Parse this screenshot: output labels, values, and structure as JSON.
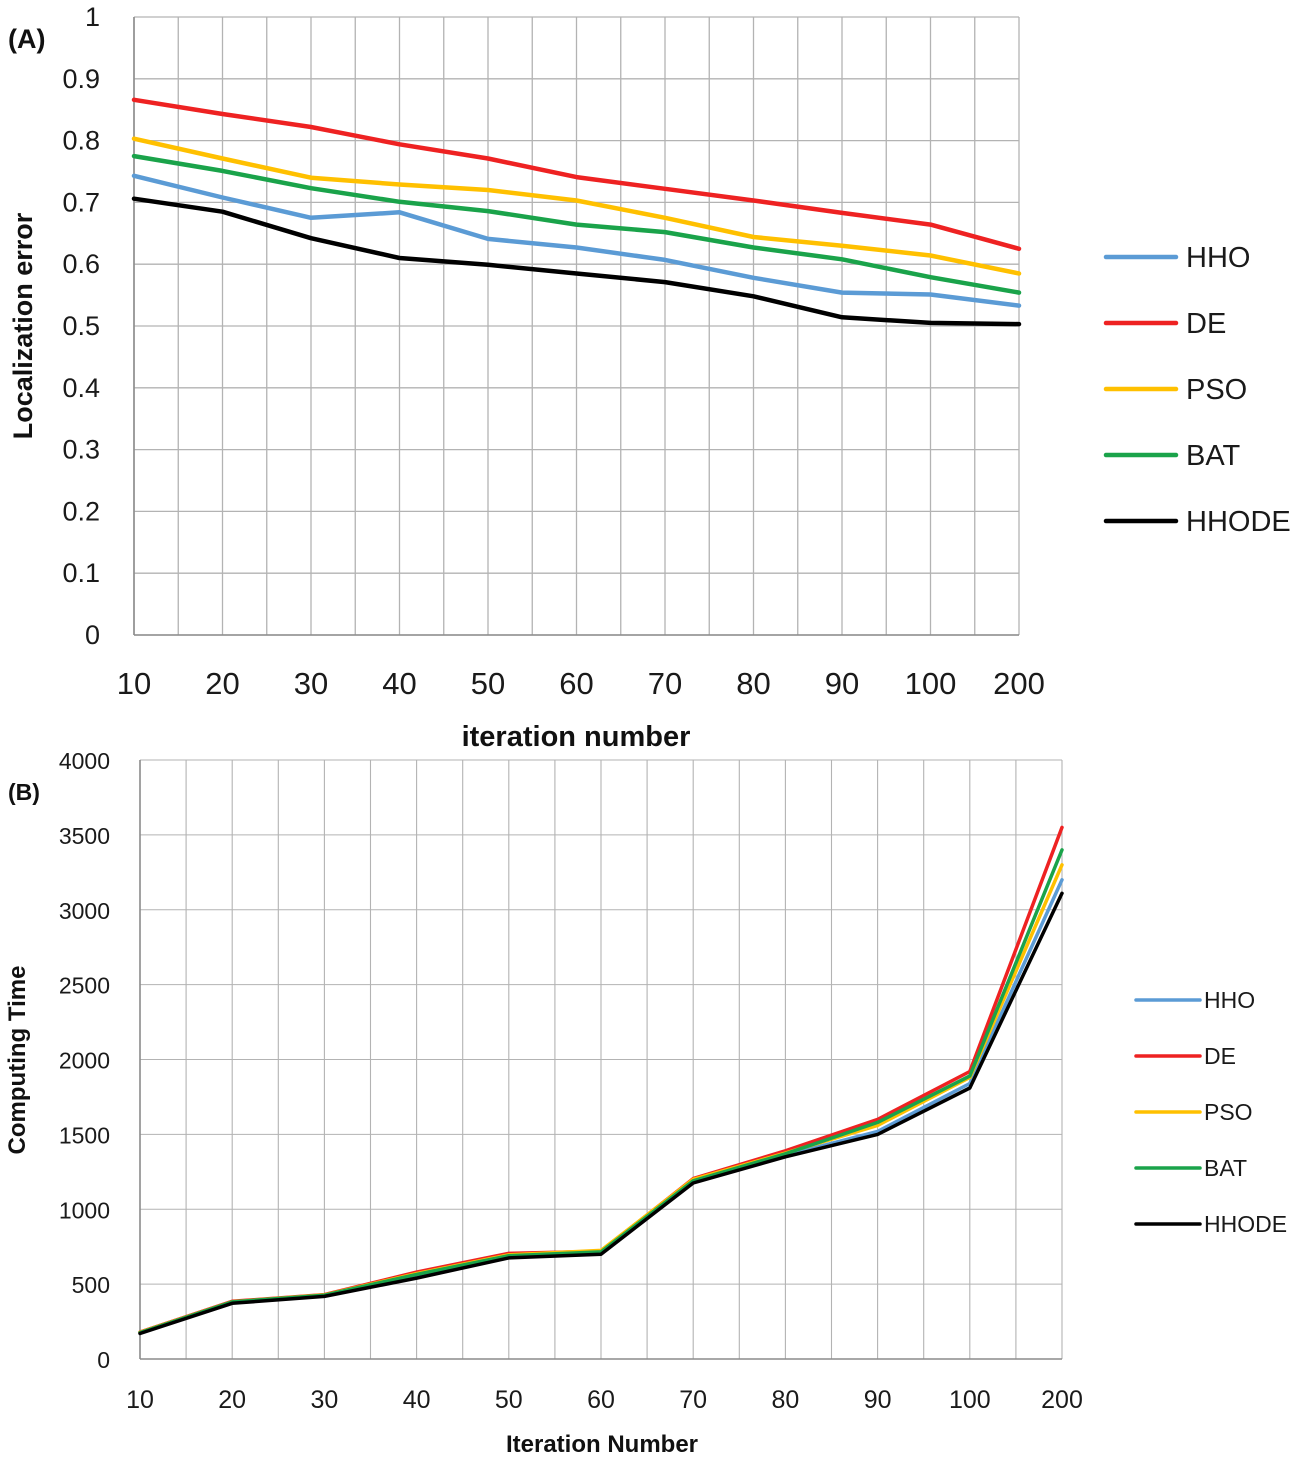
{
  "chart_data": [
    {
      "panel_label": "(A)",
      "type": "line",
      "xlabel": "iteration number",
      "ylabel": "Localization error",
      "categories": [
        "10",
        "20",
        "30",
        "40",
        "50",
        "60",
        "70",
        "80",
        "90",
        "100",
        "200"
      ],
      "ylim": [
        0,
        1
      ],
      "yticks": [
        "0",
        "0.1",
        "0.2",
        "0.3",
        "0.4",
        "0.5",
        "0.6",
        "0.7",
        "0.8",
        "0.9",
        "1"
      ],
      "grid": true,
      "legend_position": "right",
      "series": [
        {
          "name": "HHO",
          "color": "#5b9bd5",
          "values": [
            0.743,
            0.708,
            0.675,
            0.684,
            0.641,
            0.627,
            0.607,
            0.578,
            0.554,
            0.551,
            0.533
          ]
        },
        {
          "name": "DE",
          "color": "#ee2222",
          "values": [
            0.866,
            0.843,
            0.822,
            0.794,
            0.771,
            0.741,
            0.722,
            0.703,
            0.683,
            0.664,
            0.625
          ]
        },
        {
          "name": "PSO",
          "color": "#ffc000",
          "values": [
            0.803,
            0.771,
            0.74,
            0.729,
            0.72,
            0.703,
            0.675,
            0.644,
            0.63,
            0.614,
            0.585
          ]
        },
        {
          "name": "BAT",
          "color": "#1aa34a",
          "values": [
            0.775,
            0.751,
            0.723,
            0.701,
            0.686,
            0.664,
            0.652,
            0.627,
            0.608,
            0.579,
            0.554
          ]
        },
        {
          "name": "HHODE",
          "color": "#000000",
          "values": [
            0.706,
            0.685,
            0.642,
            0.61,
            0.599,
            0.585,
            0.571,
            0.548,
            0.514,
            0.505,
            0.503
          ]
        }
      ]
    },
    {
      "panel_label": "(B)",
      "type": "line",
      "xlabel": "Iteration Number",
      "ylabel": "Computing Time",
      "categories": [
        "10",
        "20",
        "30",
        "40",
        "50",
        "60",
        "70",
        "80",
        "90",
        "100",
        "200"
      ],
      "ylim": [
        0,
        4000
      ],
      "yticks": [
        "0",
        "500",
        "1000",
        "1500",
        "2000",
        "2500",
        "3000",
        "3500",
        "4000"
      ],
      "grid": true,
      "legend_position": "right",
      "series": [
        {
          "name": "HHO",
          "color": "#5b9bd5",
          "values": [
            175,
            380,
            425,
            560,
            680,
            710,
            1185,
            1360,
            1520,
            1840,
            3200
          ]
        },
        {
          "name": "DE",
          "color": "#ee2222",
          "values": [
            180,
            385,
            430,
            580,
            705,
            720,
            1205,
            1390,
            1600,
            1920,
            3550
          ]
        },
        {
          "name": "PSO",
          "color": "#ffc000",
          "values": [
            178,
            382,
            428,
            570,
            695,
            725,
            1200,
            1375,
            1560,
            1880,
            3300
          ]
        },
        {
          "name": "BAT",
          "color": "#1aa34a",
          "values": [
            176,
            381,
            426,
            565,
            690,
            715,
            1190,
            1370,
            1580,
            1890,
            3400
          ]
        },
        {
          "name": "HHODE",
          "color": "#000000",
          "values": [
            170,
            372,
            418,
            540,
            675,
            700,
            1175,
            1350,
            1500,
            1810,
            3110
          ]
        }
      ]
    }
  ]
}
